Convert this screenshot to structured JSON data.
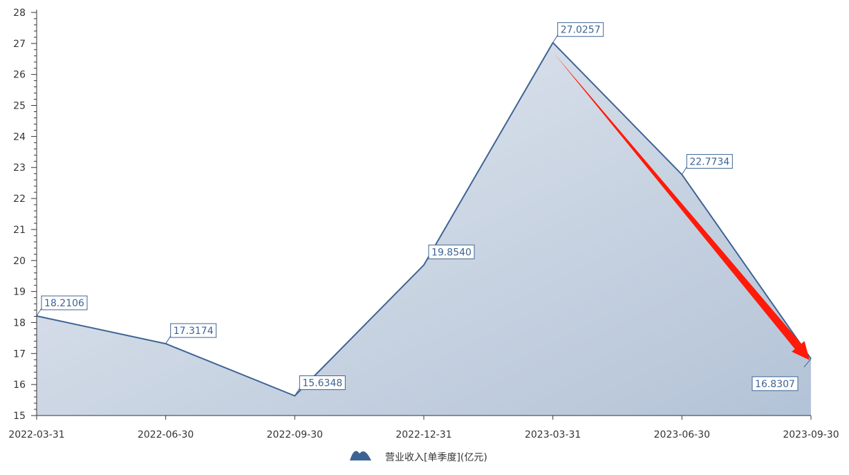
{
  "chart_data": {
    "type": "area",
    "categories": [
      "2022-03-31",
      "2022-06-30",
      "2022-09-30",
      "2022-12-31",
      "2023-03-31",
      "2023-06-30",
      "2023-09-30"
    ],
    "series": [
      {
        "name": "营业收入[单季度](亿元)",
        "values": [
          18.2106,
          17.3174,
          15.6348,
          19.854,
          27.0257,
          22.7734,
          16.8307
        ],
        "labels": [
          "18.2106",
          "17.3174",
          "15.6348",
          "19.8540",
          "27.0257",
          "22.7734",
          "16.8307"
        ]
      }
    ],
    "ylim": [
      15,
      28
    ],
    "yticks": [
      "15",
      "16",
      "17",
      "18",
      "19",
      "20",
      "21",
      "22",
      "23",
      "24",
      "25",
      "26",
      "27",
      "28"
    ],
    "legend_position": "bottom-center",
    "grid": false,
    "annotation": "red arrow pointing down from 2023-03-31 to 2023-09-30"
  },
  "colors": {
    "line": "#3d6393",
    "area_light": "#e6eaf1",
    "area_dark": "#b3c3d7",
    "arrow": "#ff1a0a",
    "axis": "#333333",
    "label_text": "#3d6393"
  }
}
